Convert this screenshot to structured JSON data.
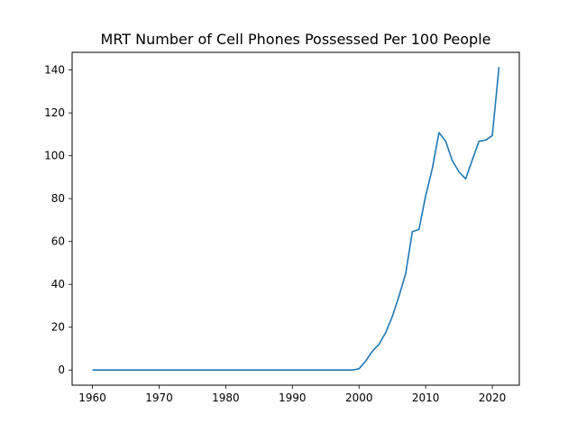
{
  "chart_data": {
    "type": "line",
    "title": "MRT Number of Cell Phones Possessed Per 100 People",
    "xlabel": "",
    "ylabel": "",
    "xlim": [
      1956.95,
      2024.05
    ],
    "ylim": [
      -7.06,
      148.27
    ],
    "x_ticks": [
      1960,
      1970,
      1980,
      1990,
      2000,
      2010,
      2020
    ],
    "y_ticks": [
      0,
      20,
      40,
      60,
      80,
      100,
      120,
      140
    ],
    "grid": false,
    "legend": "none",
    "series": [
      {
        "color": "#1f77b4",
        "x": [
          1960,
          1961,
          1962,
          1963,
          1964,
          1965,
          1966,
          1967,
          1968,
          1969,
          1970,
          1971,
          1972,
          1973,
          1974,
          1975,
          1976,
          1977,
          1978,
          1979,
          1980,
          1981,
          1982,
          1983,
          1984,
          1985,
          1986,
          1987,
          1988,
          1989,
          1990,
          1991,
          1992,
          1993,
          1994,
          1995,
          1996,
          1997,
          1998,
          1999,
          2000,
          2001,
          2002,
          2003,
          2004,
          2005,
          2006,
          2007,
          2008,
          2009,
          2010,
          2011,
          2012,
          2013,
          2014,
          2015,
          2016,
          2017,
          2018,
          2019,
          2020,
          2021
        ],
        "y": [
          0,
          0,
          0,
          0,
          0,
          0,
          0,
          0,
          0,
          0,
          0,
          0,
          0,
          0,
          0,
          0,
          0,
          0,
          0,
          0,
          0,
          0,
          0,
          0,
          0,
          0,
          0,
          0,
          0,
          0,
          0,
          0,
          0,
          0,
          0,
          0,
          0,
          0,
          0,
          0,
          0.6,
          4.2,
          8.8,
          12,
          17.5,
          25,
          34.5,
          45,
          64.6,
          65.6,
          81.3,
          94.1,
          110.8,
          106.8,
          97.7,
          92.5,
          89.2,
          98.1,
          106.8,
          107.3,
          109.4,
          141.4
        ]
      }
    ]
  }
}
